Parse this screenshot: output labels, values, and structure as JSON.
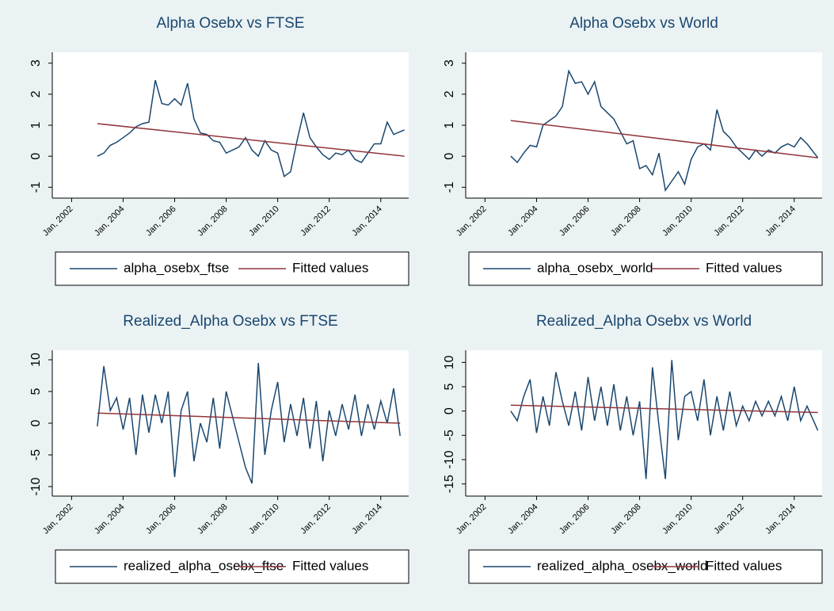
{
  "chart_data": [
    {
      "type": "line",
      "title": "Alpha Osebx vs FTSE",
      "x": [
        "2003-01",
        "2003-04",
        "2003-07",
        "2003-10",
        "2004-01",
        "2004-04",
        "2004-07",
        "2004-10",
        "2005-01",
        "2005-04",
        "2005-07",
        "2005-10",
        "2006-01",
        "2006-04",
        "2006-07",
        "2006-10",
        "2007-01",
        "2007-04",
        "2007-07",
        "2007-10",
        "2008-01",
        "2008-04",
        "2008-07",
        "2008-10",
        "2009-01",
        "2009-04",
        "2009-07",
        "2009-10",
        "2010-01",
        "2010-04",
        "2010-07",
        "2010-10",
        "2011-01",
        "2011-04",
        "2011-07",
        "2011-10",
        "2012-01",
        "2012-04",
        "2012-07",
        "2012-10",
        "2013-01",
        "2013-04",
        "2013-07",
        "2013-10",
        "2014-01",
        "2014-04",
        "2014-07",
        "2014-12"
      ],
      "series": [
        {
          "name": "alpha_osebx_ftse",
          "color": "#1a476f",
          "values": [
            0,
            0.1,
            0.35,
            0.45,
            0.6,
            0.75,
            0.95,
            1.05,
            1.1,
            2.45,
            1.7,
            1.65,
            1.85,
            1.65,
            2.35,
            1.2,
            0.75,
            0.7,
            0.5,
            0.45,
            0.1,
            0.2,
            0.3,
            0.6,
            0.2,
            0,
            0.5,
            0.2,
            0.1,
            -0.65,
            -0.5,
            0.5,
            1.4,
            0.6,
            0.3,
            0.05,
            -0.1,
            0.1,
            0.05,
            0.2,
            -0.1,
            -0.2,
            0.1,
            0.4,
            0.4,
            1.1,
            0.7,
            0.85
          ]
        },
        {
          "name": "Fitted values",
          "color": "#90353b",
          "x": [
            "2003-01",
            "2014-12"
          ],
          "values": [
            1.05,
            0
          ]
        }
      ],
      "xlim": [
        "2001-04",
        "2015-02"
      ],
      "xticks": [
        {
          "value": "2002-01",
          "label": "Jan, 2002"
        },
        {
          "value": "2004-01",
          "label": "Jan, 2004"
        },
        {
          "value": "2006-01",
          "label": "Jan, 2006"
        },
        {
          "value": "2008-01",
          "label": "Jan, 2008"
        },
        {
          "value": "2010-01",
          "label": "Jan, 2010"
        },
        {
          "value": "2012-01",
          "label": "Jan, 2012"
        },
        {
          "value": "2014-01",
          "label": "Jan, 2014"
        }
      ],
      "ylim": [
        -1.35,
        3.35
      ],
      "yticks": [
        -1,
        0,
        1,
        2,
        3
      ],
      "grid": false
    },
    {
      "type": "line",
      "title": "Alpha Osebx vs World",
      "x": [
        "2003-01",
        "2003-04",
        "2003-07",
        "2003-10",
        "2004-01",
        "2004-04",
        "2004-07",
        "2004-10",
        "2005-01",
        "2005-04",
        "2005-07",
        "2005-10",
        "2006-01",
        "2006-04",
        "2006-07",
        "2006-10",
        "2007-01",
        "2007-04",
        "2007-07",
        "2007-10",
        "2008-01",
        "2008-04",
        "2008-07",
        "2008-10",
        "2009-01",
        "2009-04",
        "2009-07",
        "2009-10",
        "2010-01",
        "2010-04",
        "2010-07",
        "2010-10",
        "2011-01",
        "2011-04",
        "2011-07",
        "2011-10",
        "2012-01",
        "2012-04",
        "2012-07",
        "2012-10",
        "2013-01",
        "2013-04",
        "2013-07",
        "2013-10",
        "2014-01",
        "2014-04",
        "2014-07",
        "2014-12"
      ],
      "series": [
        {
          "name": "alpha_osebx_world",
          "color": "#1a476f",
          "values": [
            0,
            -0.2,
            0.1,
            0.35,
            0.3,
            1.0,
            1.15,
            1.3,
            1.6,
            2.75,
            2.35,
            2.4,
            2.0,
            2.4,
            1.6,
            1.4,
            1.2,
            0.8,
            0.4,
            0.5,
            -0.4,
            -0.3,
            -0.6,
            0.1,
            -1.1,
            -0.8,
            -0.5,
            -0.9,
            -0.1,
            0.3,
            0.4,
            0.2,
            1.5,
            0.8,
            0.6,
            0.3,
            0.1,
            -0.1,
            0.2,
            0,
            0.2,
            0.1,
            0.3,
            0.4,
            0.3,
            0.6,
            0.4,
            -0.05
          ]
        },
        {
          "name": "Fitted values",
          "color": "#90353b",
          "x": [
            "2003-01",
            "2014-12"
          ],
          "values": [
            1.15,
            -0.05
          ]
        }
      ],
      "xlim": [
        "2001-04",
        "2015-02"
      ],
      "xticks": [
        {
          "value": "2002-01",
          "label": "Jan, 2002"
        },
        {
          "value": "2004-01",
          "label": "Jan, 2004"
        },
        {
          "value": "2006-01",
          "label": "Jan, 2006"
        },
        {
          "value": "2008-01",
          "label": "Jan, 2008"
        },
        {
          "value": "2010-01",
          "label": "Jan, 2010"
        },
        {
          "value": "2012-01",
          "label": "Jan, 2012"
        },
        {
          "value": "2014-01",
          "label": "Jan, 2014"
        }
      ],
      "ylim": [
        -1.35,
        3.35
      ],
      "yticks": [
        -1,
        0,
        1,
        2,
        3
      ],
      "grid": false
    },
    {
      "type": "line",
      "title": "Realized_Alpha Osebx vs FTSE",
      "x": [
        "2003-01",
        "2003-04",
        "2003-07",
        "2003-10",
        "2004-01",
        "2004-04",
        "2004-07",
        "2004-10",
        "2005-01",
        "2005-04",
        "2005-07",
        "2005-10",
        "2006-01",
        "2006-04",
        "2006-07",
        "2006-10",
        "2007-01",
        "2007-04",
        "2007-07",
        "2007-10",
        "2008-01",
        "2008-04",
        "2008-07",
        "2008-10",
        "2009-01",
        "2009-04",
        "2009-07",
        "2009-10",
        "2010-01",
        "2010-04",
        "2010-07",
        "2010-10",
        "2011-01",
        "2011-04",
        "2011-07",
        "2011-10",
        "2012-01",
        "2012-04",
        "2012-07",
        "2012-10",
        "2013-01",
        "2013-04",
        "2013-07",
        "2013-10",
        "2014-01",
        "2014-04",
        "2014-07",
        "2014-10"
      ],
      "series": [
        {
          "name": "realized_alpha_osebx_ftse",
          "color": "#1a476f",
          "values": [
            -0.5,
            9,
            2,
            4,
            -1,
            4,
            -5,
            4.5,
            -1.5,
            4.5,
            0,
            5,
            -8.5,
            2,
            5,
            -6,
            0,
            -3,
            4,
            -4,
            5,
            1,
            -3,
            -7,
            -9.5,
            9.5,
            -5,
            2,
            6.5,
            -3,
            3,
            -2,
            4,
            -4,
            3.5,
            -6,
            2,
            -2,
            3,
            -1,
            4.5,
            -2,
            3,
            -1,
            3.5,
            0,
            5.5,
            -2
          ]
        },
        {
          "name": "Fitted values",
          "color": "#90353b",
          "x": [
            "2003-01",
            "2014-10"
          ],
          "values": [
            1.6,
            0
          ]
        }
      ],
      "xlim": [
        "2001-04",
        "2015-02"
      ],
      "xticks": [
        {
          "value": "2002-01",
          "label": "Jan, 2002"
        },
        {
          "value": "2004-01",
          "label": "Jan, 2004"
        },
        {
          "value": "2006-01",
          "label": "Jan, 2006"
        },
        {
          "value": "2008-01",
          "label": "Jan, 2008"
        },
        {
          "value": "2010-01",
          "label": "Jan, 2010"
        },
        {
          "value": "2012-01",
          "label": "Jan, 2012"
        },
        {
          "value": "2014-01",
          "label": "Jan, 2014"
        }
      ],
      "ylim": [
        -11.5,
        11.5
      ],
      "yticks": [
        -10,
        -5,
        0,
        5,
        10
      ],
      "grid": false
    },
    {
      "type": "line",
      "title": "Realized_Alpha Osebx vs World",
      "x": [
        "2003-01",
        "2003-04",
        "2003-07",
        "2003-10",
        "2004-01",
        "2004-04",
        "2004-07",
        "2004-10",
        "2005-01",
        "2005-04",
        "2005-07",
        "2005-10",
        "2006-01",
        "2006-04",
        "2006-07",
        "2006-10",
        "2007-01",
        "2007-04",
        "2007-07",
        "2007-10",
        "2008-01",
        "2008-04",
        "2008-07",
        "2008-10",
        "2009-01",
        "2009-04",
        "2009-07",
        "2009-10",
        "2010-01",
        "2010-04",
        "2010-07",
        "2010-10",
        "2011-01",
        "2011-04",
        "2011-07",
        "2011-10",
        "2012-01",
        "2012-04",
        "2012-07",
        "2012-10",
        "2013-01",
        "2013-04",
        "2013-07",
        "2013-10",
        "2014-01",
        "2014-04",
        "2014-07",
        "2014-12"
      ],
      "series": [
        {
          "name": "realized_alpha_osebx_world",
          "color": "#1a476f",
          "values": [
            0,
            -2,
            3,
            6.5,
            -4.5,
            3,
            -3,
            8,
            2,
            -3,
            4,
            -4,
            7,
            -2,
            5,
            -3,
            5.5,
            -4,
            3,
            -5,
            2,
            -14,
            9,
            -3,
            -14,
            10.5,
            -6,
            3,
            4,
            -2,
            6.5,
            -5,
            3,
            -4,
            4,
            -3,
            1,
            -2,
            2,
            -1,
            2,
            -1,
            3,
            -2,
            5,
            -2,
            1,
            -4
          ]
        },
        {
          "name": "Fitted values",
          "color": "#90353b",
          "x": [
            "2003-01",
            "2014-12"
          ],
          "values": [
            1.2,
            -0.3
          ]
        }
      ],
      "xlim": [
        "2001-04",
        "2015-02"
      ],
      "xticks": [
        {
          "value": "2002-01",
          "label": "Jan, 2002"
        },
        {
          "value": "2004-01",
          "label": "Jan, 2004"
        },
        {
          "value": "2006-01",
          "label": "Jan, 2006"
        },
        {
          "value": "2008-01",
          "label": "Jan, 2008"
        },
        {
          "value": "2010-01",
          "label": "Jan, 2010"
        },
        {
          "value": "2012-01",
          "label": "Jan, 2012"
        },
        {
          "value": "2014-01",
          "label": "Jan, 2014"
        }
      ],
      "ylim": [
        -17.5,
        12.5
      ],
      "yticks": [
        -15,
        -10,
        -5,
        0,
        5,
        10
      ],
      "grid": false
    }
  ]
}
